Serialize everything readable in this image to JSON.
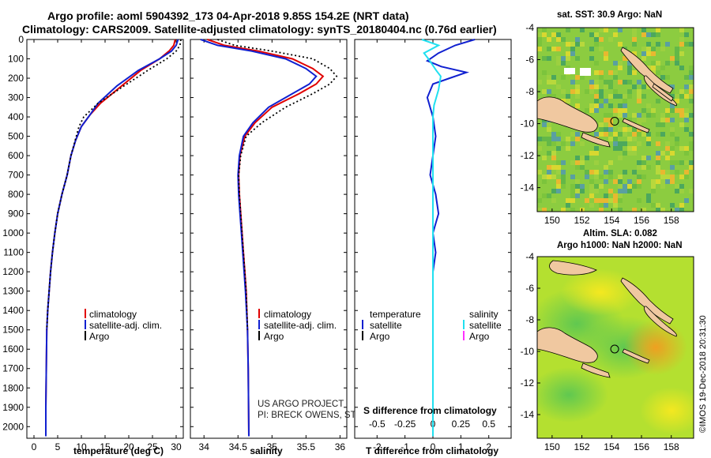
{
  "header": {
    "title_line1": "Argo profile: aoml 5904392_173 04-Apr-2018 9.85S 154.2E (NRT data)",
    "title_line2": "Climatology: CARS2009. Satellite-adjusted climatology: synTS_20180404.nc (0.76d earlier)"
  },
  "maps": {
    "sst": {
      "title": "sat. SST: 30.9 Argo: NaN"
    },
    "sla": {
      "title_line1": "Altim. SLA: 0.082",
      "title_line2": "Argo h1000: NaN h2000: NaN"
    },
    "x_ticks": [
      "150",
      "152",
      "154",
      "156",
      "158"
    ],
    "y_ticks": [
      "-4",
      "-6",
      "-8",
      "-10",
      "-12",
      "-14"
    ]
  },
  "colors": {
    "climatology": "#e00000",
    "satellite": "#1020d0",
    "argo": "#000000",
    "salinity_sat": "#20e0f0",
    "salinity_argo": "#ff30ff"
  },
  "footer": {
    "stamp": "©IMOS 19-Dec-2018 20:31:30",
    "project_line1": "US ARGO PROJECT",
    "project_line2": "PI: BRECK OWENS, STEVE JAYNE, P.E. ROBBINS"
  },
  "chart_data": [
    {
      "type": "line",
      "title": "",
      "xlabel": "temperature (deg C)",
      "ylabel": "",
      "xlim": [
        -1.5,
        31.5
      ],
      "ylim": [
        2060,
        0
      ],
      "x_ticks": [
        0,
        5,
        10,
        15,
        20,
        25,
        30
      ],
      "y_ticks": [
        0,
        100,
        200,
        300,
        400,
        500,
        600,
        700,
        800,
        900,
        1000,
        1100,
        1200,
        1300,
        1400,
        1500,
        1600,
        1700,
        1800,
        1900,
        2000
      ],
      "legend": [
        "climatology",
        "satellite-adj. clim.",
        "Argo"
      ],
      "series": [
        {
          "name": "climatology",
          "x": [
            29.8,
            29.5,
            28.5,
            26.5,
            22.5,
            18.5,
            14.0,
            11.8,
            10.0,
            8.8,
            7.8,
            7.0,
            5.9,
            5.0,
            4.4,
            3.9,
            3.5,
            3.2,
            2.9,
            2.7,
            2.6,
            2.5,
            2.5
          ],
          "y": [
            0,
            30,
            60,
            100,
            160,
            240,
            330,
            390,
            450,
            520,
            600,
            700,
            800,
            900,
            1000,
            1100,
            1200,
            1300,
            1400,
            1500,
            1700,
            1900,
            2050
          ]
        },
        {
          "name": "satellite-adj. clim.",
          "x": [
            30.4,
            30.0,
            29.0,
            26.5,
            22.0,
            17.5,
            13.5,
            11.8,
            10.0,
            8.8,
            7.8,
            7.0,
            5.9,
            5.0,
            4.4,
            3.9,
            3.5,
            3.2,
            2.9,
            2.7,
            2.6,
            2.5,
            2.5
          ],
          "y": [
            0,
            30,
            60,
            100,
            160,
            240,
            330,
            390,
            450,
            520,
            600,
            700,
            800,
            900,
            1000,
            1100,
            1200,
            1300,
            1400,
            1500,
            1700,
            1900,
            2050
          ]
        },
        {
          "name": "Argo",
          "x": [
            31.0,
            30.8,
            30.0,
            28.0,
            24.0,
            19.0,
            13.5,
            10.5,
            9.5,
            8.7,
            7.8,
            7.0,
            5.9,
            5.0,
            4.4,
            3.9,
            3.5,
            3.2,
            2.9,
            2.7
          ],
          "y": [
            0,
            30,
            60,
            100,
            160,
            240,
            330,
            400,
            450,
            520,
            600,
            700,
            800,
            900,
            1000,
            1100,
            1200,
            1300,
            1400,
            1500
          ]
        }
      ]
    },
    {
      "type": "line",
      "title": "",
      "xlabel": "salinity",
      "ylabel": "",
      "xlim": [
        33.8,
        36.1
      ],
      "ylim": [
        2060,
        0
      ],
      "x_ticks": [
        34,
        34.5,
        35,
        35.5,
        36
      ],
      "legend": [
        "climatology",
        "satellite-adj. clim.",
        "Argo"
      ],
      "series": [
        {
          "name": "climatology",
          "x": [
            34.05,
            34.3,
            34.8,
            35.3,
            35.6,
            35.75,
            35.65,
            35.4,
            35.0,
            34.75,
            34.6,
            34.53,
            34.51,
            34.52,
            34.54,
            34.56,
            34.58,
            34.6,
            34.62,
            34.64,
            34.65,
            34.66
          ],
          "y": [
            0,
            30,
            60,
            100,
            150,
            190,
            230,
            280,
            350,
            430,
            500,
            600,
            700,
            800,
            900,
            1000,
            1100,
            1200,
            1300,
            1500,
            1700,
            2050
          ]
        },
        {
          "name": "satellite-adj. clim.",
          "x": [
            33.95,
            34.2,
            34.7,
            35.2,
            35.5,
            35.65,
            35.55,
            35.3,
            34.95,
            34.72,
            34.58,
            34.52,
            34.5,
            34.51,
            34.53,
            34.55,
            34.57,
            34.59,
            34.61,
            34.64,
            34.65,
            34.66
          ],
          "y": [
            0,
            30,
            60,
            100,
            150,
            190,
            230,
            280,
            350,
            430,
            500,
            600,
            700,
            800,
            900,
            1000,
            1100,
            1200,
            1300,
            1500,
            1700,
            2050
          ]
        },
        {
          "name": "Argo",
          "x": [
            34.2,
            34.45,
            35.0,
            35.6,
            35.85,
            35.95,
            35.85,
            35.6,
            35.2,
            34.85,
            34.62,
            34.54,
            34.51,
            34.52,
            34.54,
            34.56,
            34.58,
            34.6,
            34.62,
            34.64
          ],
          "y": [
            0,
            30,
            60,
            100,
            150,
            190,
            230,
            280,
            350,
            430,
            500,
            600,
            700,
            800,
            900,
            1000,
            1100,
            1200,
            1300,
            1500
          ]
        }
      ]
    },
    {
      "type": "line",
      "title": "",
      "xlabel": "T difference from climatology",
      "x2label": "S difference from climatology",
      "ylabel": "",
      "xlim": [
        -2.8,
        2.8
      ],
      "x2lim": [
        -0.7,
        0.7
      ],
      "ylim": [
        2060,
        0
      ],
      "x_ticks": [
        -2,
        -1,
        0,
        1,
        2
      ],
      "x2_ticks": [
        -0.5,
        -0.25,
        0,
        0.25,
        0.5
      ],
      "legend": [
        "temperature satellite",
        "temperature Argo",
        "salinity satellite",
        "salinity Argo"
      ],
      "series": [
        {
          "name": "temperature satellite",
          "x": [
            1.5,
            0.8,
            0.2,
            -0.2,
            0.3,
            1.2,
            0.6,
            0.0,
            -0.2,
            0.0,
            0.1,
            0.0,
            -0.1,
            0.1,
            0.2,
            0.0,
            0.1,
            0.0,
            0.0,
            0.0,
            0.0,
            0.0
          ],
          "y": [
            0,
            30,
            70,
            110,
            140,
            170,
            200,
            230,
            300,
            400,
            500,
            600,
            700,
            800,
            900,
            1000,
            1100,
            1200,
            1300,
            1500,
            1700,
            2050
          ]
        },
        {
          "name": "salinity satellite",
          "x": [
            -0.1,
            0.05,
            -0.08,
            -0.04,
            0.03,
            0.07,
            0.05,
            0.01,
            0.0,
            0.0,
            0.0,
            0.0,
            0.0,
            0.0,
            0.0,
            0.0,
            0.0,
            0.0
          ],
          "y": [
            0,
            30,
            70,
            100,
            160,
            190,
            260,
            340,
            400,
            500,
            600,
            800,
            1000,
            1200,
            1400,
            1600,
            1800,
            2050
          ]
        }
      ]
    },
    {
      "type": "heatmap",
      "title": "sat. SST: 30.9 Argo: NaN",
      "xlabel": "",
      "ylabel": "",
      "xlim": [
        149,
        159.5
      ],
      "ylim": [
        -15.5,
        -4
      ],
      "x_ticks": [
        150,
        152,
        154,
        156,
        158
      ],
      "y_ticks": [
        -4,
        -6,
        -8,
        -10,
        -12,
        -14
      ],
      "marker": {
        "lon": 154.2,
        "lat": -9.85
      }
    },
    {
      "type": "heatmap",
      "title": "Altim. SLA: 0.082 / Argo h1000: NaN h2000: NaN",
      "xlabel": "",
      "ylabel": "",
      "xlim": [
        149,
        159.5
      ],
      "ylim": [
        -15.5,
        -4
      ],
      "x_ticks": [
        150,
        152,
        154,
        156,
        158
      ],
      "y_ticks": [
        -4,
        -6,
        -8,
        -10,
        -12,
        -14
      ],
      "marker": {
        "lon": 154.2,
        "lat": -9.85
      }
    }
  ]
}
